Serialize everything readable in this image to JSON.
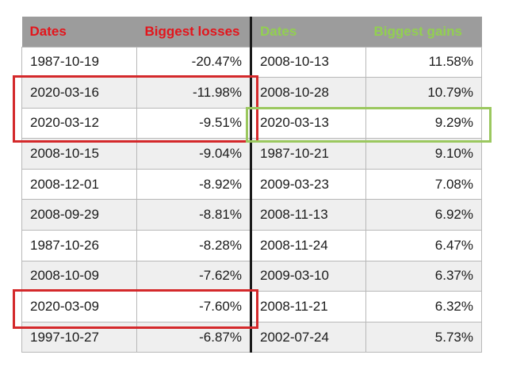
{
  "header": {
    "loss_dates": "Dates",
    "loss_values": "Biggest losses",
    "gain_dates": "Dates",
    "gain_values": "Biggest gains"
  },
  "colors": {
    "loss_header": "#e3151c",
    "gain_header": "#92d050",
    "header_bg": "#9c9c9c",
    "loss_highlight": "#d4292b",
    "gain_highlight": "#9bc85f"
  },
  "rows": [
    {
      "loss_date": "1987-10-19",
      "loss_value": "-20.47%",
      "gain_date": "2008-10-13",
      "gain_value": "11.58%"
    },
    {
      "loss_date": "2020-03-16",
      "loss_value": "-11.98%",
      "gain_date": "2008-10-28",
      "gain_value": "10.79%"
    },
    {
      "loss_date": "2020-03-12",
      "loss_value": "-9.51%",
      "gain_date": "2020-03-13",
      "gain_value": "9.29%"
    },
    {
      "loss_date": "2008-10-15",
      "loss_value": "-9.04%",
      "gain_date": "1987-10-21",
      "gain_value": "9.10%"
    },
    {
      "loss_date": "2008-12-01",
      "loss_value": "-8.92%",
      "gain_date": "2009-03-23",
      "gain_value": "7.08%"
    },
    {
      "loss_date": "2008-09-29",
      "loss_value": "-8.81%",
      "gain_date": "2008-11-13",
      "gain_value": "6.92%"
    },
    {
      "loss_date": "1987-10-26",
      "loss_value": "-8.28%",
      "gain_date": "2008-11-24",
      "gain_value": "6.47%"
    },
    {
      "loss_date": "2008-10-09",
      "loss_value": "-7.62%",
      "gain_date": "2009-03-10",
      "gain_value": "6.37%"
    },
    {
      "loss_date": "2020-03-09",
      "loss_value": "-7.60%",
      "gain_date": "2008-11-21",
      "gain_value": "6.32%"
    },
    {
      "loss_date": "1997-10-27",
      "loss_value": "-6.87%",
      "gain_date": "2002-07-24",
      "gain_value": "5.73%"
    }
  ]
}
